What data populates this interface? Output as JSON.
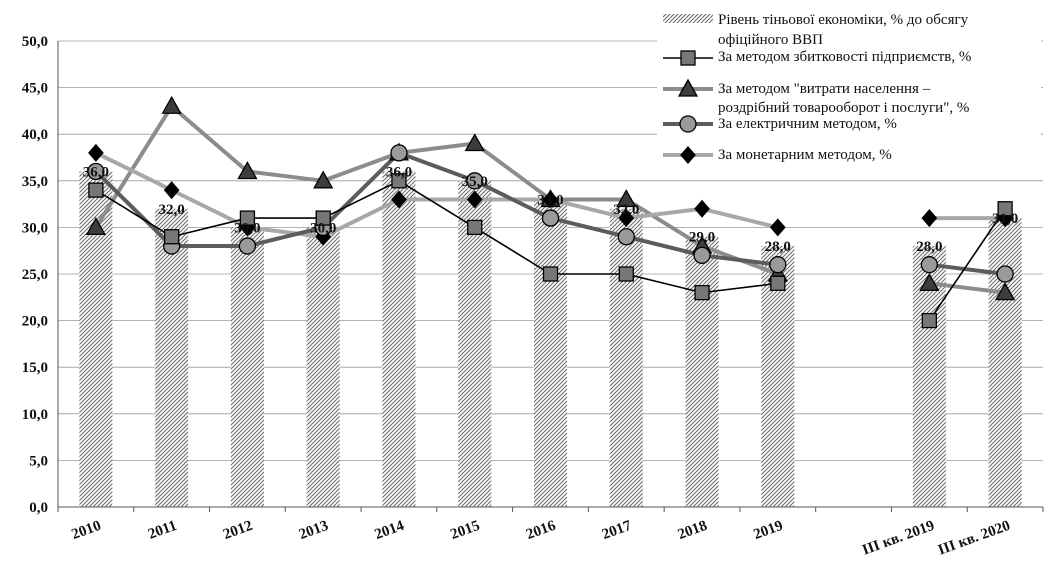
{
  "chart_data": {
    "type": "bar",
    "categories": [
      "2010",
      "2011",
      "2012",
      "2013",
      "2014",
      "2015",
      "2016",
      "2017",
      "2018",
      "2019",
      "",
      "III кв. 2019",
      "III кв. 2020"
    ],
    "ylim": [
      0,
      50
    ],
    "yticks": [
      "0,0",
      "5,0",
      "10,0",
      "15,0",
      "20,0",
      "25,0",
      "30,0",
      "35,0",
      "40,0",
      "45,0",
      "50,0"
    ],
    "grid": true,
    "legend_position": "top-right",
    "bars": {
      "name_lines": [
        "Рівень тіньової економіки, % до обсягу",
        "офіційного ВВП"
      ],
      "values": [
        36,
        32,
        30,
        30,
        36,
        35,
        33,
        32,
        29,
        28,
        null,
        28,
        31
      ],
      "labels": [
        "36,0",
        "32,0",
        "30,0",
        "30,0",
        "36,0",
        "35,0",
        "33,0",
        "32,0",
        "29,0",
        "28,0",
        "",
        "28,0",
        "31,0"
      ],
      "label_values": [
        36,
        32,
        30,
        30,
        36,
        35,
        33,
        32,
        29,
        28,
        null,
        28,
        31
      ]
    },
    "series": [
      {
        "name_lines": [
          "За методом збитковості підприємств, %"
        ],
        "marker": "square",
        "color": "#000000",
        "marker_fill": "#777777",
        "values": [
          34,
          29,
          31,
          31,
          35,
          30,
          25,
          25,
          23,
          24,
          null,
          20,
          32
        ]
      },
      {
        "name_lines": [
          "За методом \"витрати населення –",
          "роздрібний товарооборот і послуги\",  %"
        ],
        "marker": "triangle",
        "color": "#8c8c8c",
        "marker_fill": "#3d3d3d",
        "values": [
          30,
          43,
          36,
          35,
          38,
          39,
          33,
          33,
          28,
          25,
          null,
          24,
          23
        ]
      },
      {
        "name_lines": [
          "За електричним  методом, %"
        ],
        "marker": "circle",
        "color": "#5c5c5c",
        "marker_fill": "#9a9a9a",
        "values": [
          36,
          28,
          28,
          30,
          38,
          35,
          31,
          29,
          27,
          26,
          null,
          26,
          25
        ]
      },
      {
        "name_lines": [
          "За монетарним  методом, %"
        ],
        "marker": "diamond",
        "color": "#a8a8a8",
        "marker_fill": "#000000",
        "values": [
          38,
          34,
          30,
          29,
          33,
          33,
          33,
          31,
          32,
          30,
          null,
          31,
          31
        ]
      }
    ]
  }
}
